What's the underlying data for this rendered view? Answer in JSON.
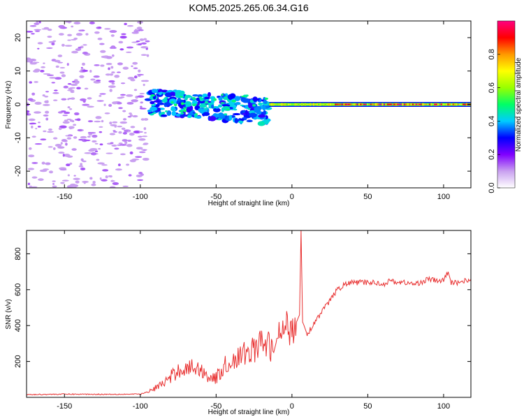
{
  "chart_data": [
    {
      "type": "heatmap",
      "title": "KOM5.2025.265.06.34.G16",
      "xlabel": "Height of straight line (km)",
      "ylabel": "Frequency (Hz)",
      "xlim": [
        -175,
        118
      ],
      "ylim": [
        -25,
        25
      ],
      "xticks": [
        -150,
        -100,
        -50,
        0,
        50,
        100
      ],
      "yticks": [
        -20,
        -10,
        0,
        10,
        20
      ],
      "colorbar": {
        "label": "Normalized spectral amplitude",
        "range": [
          0,
          1
        ],
        "ticks": [
          0.0,
          0.2,
          0.4,
          0.6,
          0.8
        ],
        "colors": [
          "#ffffff",
          "#c9a0f0",
          "#8000ff",
          "#0000ff",
          "#00ccff",
          "#00ff66",
          "#99ff00",
          "#ffff00",
          "#ff9900",
          "#ff0000",
          "#ff0080"
        ]
      },
      "features": [
        {
          "name": "noise region",
          "x_range": [
            -175,
            -95
          ],
          "y_range": [
            -25,
            25
          ],
          "amplitude": 0.05
        },
        {
          "name": "scattered signal",
          "x_range": [
            -95,
            -15
          ],
          "y_range": [
            -10,
            4
          ],
          "amplitude": 0.3
        },
        {
          "name": "central line",
          "x_range": [
            -15,
            118
          ],
          "center_freq": 0,
          "amplitude": 0.9
        }
      ]
    },
    {
      "type": "line",
      "xlabel": "Height of straight line (km)",
      "ylabel": "SNR (v/v)",
      "xlim": [
        -175,
        118
      ],
      "ylim": [
        0,
        930
      ],
      "xticks": [
        -150,
        -100,
        -50,
        0,
        50,
        100
      ],
      "yticks": [
        200,
        400,
        600,
        800
      ],
      "series": [
        {
          "name": "SNR",
          "color": "#e83030",
          "x": [
            -175,
            -150,
            -125,
            -100,
            -95,
            -90,
            -85,
            -80,
            -75,
            -70,
            -65,
            -60,
            -55,
            -50,
            -45,
            -40,
            -35,
            -30,
            -25,
            -20,
            -15,
            -12,
            -10,
            -5,
            0,
            3,
            5,
            6,
            7,
            8,
            10,
            15,
            20,
            25,
            30,
            35,
            40,
            45,
            50,
            55,
            60,
            65,
            70,
            75,
            80,
            85,
            90,
            95,
            100,
            103,
            105,
            110,
            118
          ],
          "values": [
            15,
            18,
            17,
            18,
            30,
            50,
            80,
            110,
            150,
            160,
            170,
            150,
            120,
            100,
            170,
            200,
            220,
            250,
            270,
            300,
            290,
            250,
            320,
            380,
            400,
            420,
            460,
            930,
            420,
            400,
            350,
            420,
            480,
            540,
            600,
            630,
            640,
            640,
            640,
            640,
            630,
            650,
            640,
            640,
            630,
            640,
            660,
            650,
            650,
            700,
            640,
            640,
            660
          ]
        }
      ]
    }
  ]
}
